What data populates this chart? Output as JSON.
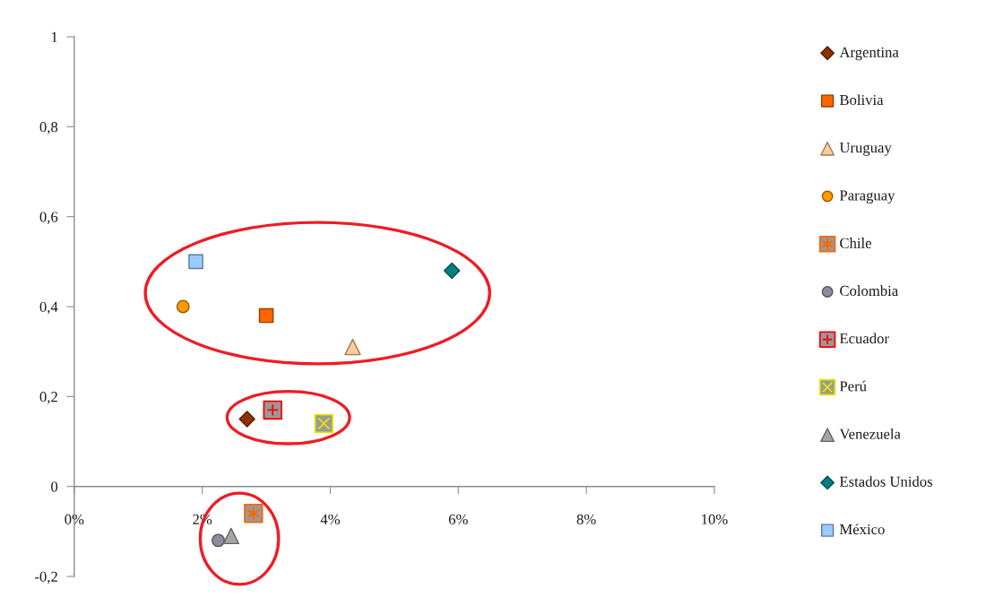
{
  "chart_data": {
    "type": "scatter",
    "xlim": [
      0,
      10
    ],
    "xticks": [
      {
        "value": 0,
        "label": "0%"
      },
      {
        "value": 2,
        "label": "2%"
      },
      {
        "value": 4,
        "label": "4%"
      },
      {
        "value": 6,
        "label": "6%"
      },
      {
        "value": 8,
        "label": "8%"
      },
      {
        "value": 10,
        "label": "10%"
      }
    ],
    "ylim": [
      -0.2,
      1
    ],
    "yticks": [
      {
        "value": -0.2,
        "label": "-0,2"
      },
      0,
      {
        "value": 0.2,
        "label": "0,2"
      },
      {
        "value": 0.4,
        "label": "0,4"
      },
      {
        "value": 0.6,
        "label": "0,6"
      },
      {
        "value": 0.8,
        "label": "0,8"
      },
      1
    ],
    "legend": "right",
    "series": [
      {
        "name": "Argentina",
        "color": "#8b3300",
        "marker": "diamond",
        "x": [
          2.7
        ],
        "values": [
          0.15
        ]
      },
      {
        "name": "Bolivia",
        "color": "#ff6600",
        "marker": "square",
        "x": [
          3.0
        ],
        "values": [
          0.38
        ]
      },
      {
        "name": "Uruguay",
        "color": "#ffcc99",
        "marker": "triangle",
        "x": [
          4.35
        ],
        "values": [
          0.31
        ]
      },
      {
        "name": "Paraguay",
        "color": "#ff9900",
        "marker": "circle",
        "x": [
          1.7
        ],
        "values": [
          0.4
        ]
      },
      {
        "name": "Chile",
        "color": "#ff6600",
        "marker": "star",
        "x": [
          2.8
        ],
        "values": [
          -0.06
        ]
      },
      {
        "name": "Colombia",
        "color": "#8c8c9c",
        "marker": "circle",
        "x": [
          2.25
        ],
        "values": [
          -0.12
        ]
      },
      {
        "name": "Ecuador",
        "color": "#ff0000",
        "marker": "plus",
        "x": [
          3.1
        ],
        "values": [
          0.17
        ]
      },
      {
        "name": "Perú",
        "color": "#e6e600",
        "marker": "cross",
        "x": [
          3.9
        ],
        "values": [
          0.14
        ]
      },
      {
        "name": "Venezuela",
        "color": "#a6a6a6",
        "marker": "triangle",
        "x": [
          2.45
        ],
        "values": [
          -0.11
        ]
      },
      {
        "name": "Estados Unidos",
        "color": "#008080",
        "marker": "diamond",
        "x": [
          5.9
        ],
        "values": [
          0.48
        ]
      },
      {
        "name": "México",
        "color": "#99ccff",
        "marker": "square",
        "x": [
          1.9
        ],
        "values": [
          0.5
        ]
      }
    ]
  }
}
